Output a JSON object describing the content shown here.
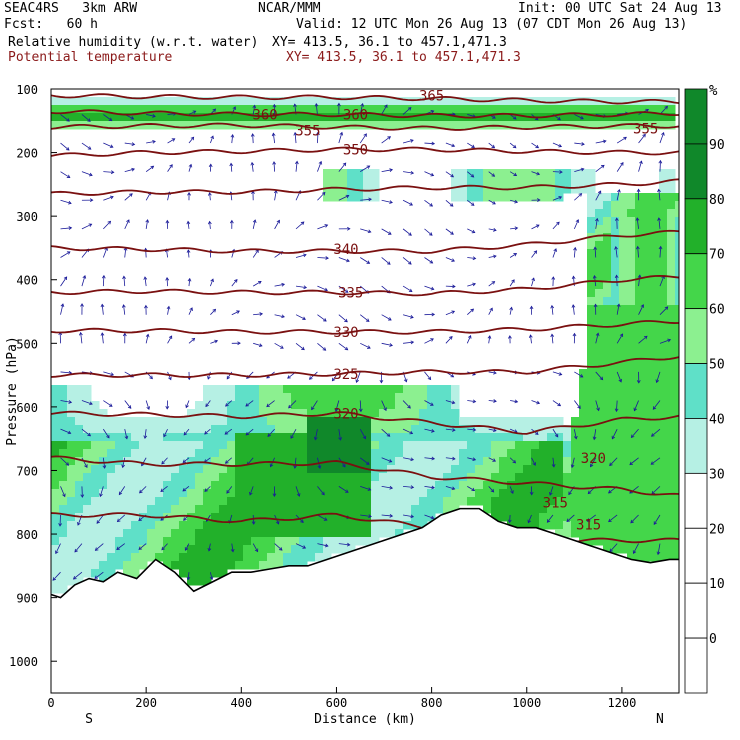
{
  "header": {
    "model": "SEAC4RS   3km ARW",
    "org": "NCAR/MMM",
    "init": "Init: 00 UTC Sat 24 Aug 13",
    "fcst": "Fcst:   60 h",
    "valid": "Valid: 12 UTC Mon 26 Aug 13 (07 CDT Mon 26 Aug 13)",
    "field1": "Relative humidity (w.r.t. water)",
    "xy1": "XY= 413.5, 36.1 to 457.1,471.3",
    "field2": "Potential temperature",
    "xy2": "XY= 413.5, 36.1 to 457.1,471.3"
  },
  "colors": {
    "rh": [
      "#ffffff",
      "#ffffff",
      "#ffffff",
      "#ffffff",
      "#b6f0e4",
      "#5fe0c8",
      "#8cf090",
      "#44d64a",
      "#22b02a",
      "#10882a"
    ],
    "theta": "#7a1010",
    "wind": "#1a1a99",
    "terrain": "#ffffff"
  },
  "chart_data": {
    "type": "heatmap",
    "title": "Relative humidity (w.r.t. water)",
    "xlabel": "Distance (km)",
    "ylabel": "Pressure (hPa)",
    "xlim": [
      0,
      1320
    ],
    "ylim": [
      1050,
      100
    ],
    "xticks": [
      0,
      200,
      400,
      600,
      800,
      1000,
      1200
    ],
    "yticks": [
      100,
      200,
      300,
      400,
      500,
      600,
      700,
      800,
      900,
      1000
    ],
    "x_end_labels": {
      "left": "S",
      "right": "N"
    },
    "colorbar": {
      "unit": "%",
      "levels": [
        0,
        10,
        20,
        30,
        40,
        50,
        60,
        70,
        80,
        90
      ]
    },
    "terrain_pressure": {
      "x": [
        0,
        20,
        50,
        80,
        110,
        140,
        180,
        220,
        260,
        300,
        340,
        380,
        420,
        460,
        500,
        540,
        580,
        620,
        660,
        700,
        740,
        780,
        820,
        860,
        900,
        940,
        980,
        1020,
        1060,
        1100,
        1140,
        1180,
        1220,
        1260,
        1300,
        1320
      ],
      "p": [
        895,
        900,
        880,
        870,
        875,
        860,
        870,
        840,
        860,
        890,
        875,
        860,
        860,
        855,
        850,
        850,
        840,
        830,
        820,
        810,
        800,
        790,
        770,
        760,
        760,
        780,
        790,
        790,
        800,
        810,
        820,
        830,
        840,
        845,
        840,
        840
      ]
    },
    "theta_contours": [
      {
        "label": "365",
        "x": [
          0,
          200,
          400,
          600,
          800,
          1000,
          1200,
          1320
        ],
        "p": [
          110,
          112,
          113,
          113,
          115,
          118,
          120,
          120
        ]
      },
      {
        "label": "360",
        "x": [
          0,
          200,
          400,
          600,
          800,
          1000,
          1200,
          1320
        ],
        "p": [
          135,
          138,
          140,
          140,
          142,
          142,
          140,
          138
        ]
      },
      {
        "label": "355",
        "x": [
          0,
          200,
          400,
          600,
          800,
          1000,
          1200,
          1320
        ],
        "p": [
          160,
          158,
          157,
          160,
          162,
          160,
          158,
          158
        ]
      },
      {
        "label": "350",
        "x": [
          0,
          200,
          400,
          600,
          800,
          1000,
          1200,
          1320
        ],
        "p": [
          205,
          200,
          198,
          195,
          195,
          198,
          200,
          200
        ]
      },
      {
        "label": "",
        "x": [
          0,
          200,
          400,
          600,
          800,
          1000,
          1200,
          1320
        ],
        "p": [
          265,
          262,
          262,
          258,
          255,
          255,
          250,
          245
        ]
      },
      {
        "label": "340",
        "x": [
          0,
          200,
          400,
          600,
          800,
          1000,
          1200,
          1320
        ],
        "p": [
          350,
          352,
          355,
          355,
          355,
          345,
          330,
          325
        ]
      },
      {
        "label": "335",
        "x": [
          0,
          200,
          400,
          600,
          800,
          1000,
          1200,
          1320
        ],
        "p": [
          420,
          418,
          420,
          420,
          422,
          415,
          400,
          395
        ]
      },
      {
        "label": "330",
        "x": [
          0,
          200,
          400,
          600,
          800,
          1000,
          1200,
          1320
        ],
        "p": [
          480,
          480,
          482,
          482,
          482,
          478,
          470,
          465
        ]
      },
      {
        "label": "325",
        "x": [
          0,
          200,
          400,
          600,
          800,
          1000,
          1200,
          1320
        ],
        "p": [
          550,
          550,
          550,
          548,
          545,
          545,
          530,
          520
        ]
      },
      {
        "label": "320",
        "x": [
          0,
          200,
          400,
          600,
          800,
          1000,
          1200,
          1320
        ],
        "p": [
          610,
          612,
          615,
          610,
          625,
          640,
          620,
          615
        ]
      },
      {
        "label": "",
        "x": [
          0,
          200,
          400,
          600,
          800,
          1000,
          1200,
          1320
        ],
        "p": [
          680,
          690,
          690,
          688,
          710,
          720,
          730,
          740
        ]
      },
      {
        "label": "",
        "x": [
          0,
          200,
          400,
          600,
          800,
          1000,
          1200,
          1320
        ],
        "p": [
          770,
          770,
          780,
          770,
          790,
          810,
          810,
          810
        ]
      }
    ],
    "contour_labels": [
      {
        "text": "365",
        "x": 800,
        "p": 110
      },
      {
        "text": "360",
        "x": 450,
        "p": 140
      },
      {
        "text": "360",
        "x": 640,
        "p": 140
      },
      {
        "text": "355",
        "x": 540,
        "p": 165
      },
      {
        "text": "355",
        "x": 1250,
        "p": 162
      },
      {
        "text": "350",
        "x": 640,
        "p": 195
      },
      {
        "text": "340",
        "x": 620,
        "p": 352
      },
      {
        "text": "335",
        "x": 630,
        "p": 420
      },
      {
        "text": "330",
        "x": 620,
        "p": 482
      },
      {
        "text": "325",
        "x": 620,
        "p": 548
      },
      {
        "text": "320",
        "x": 620,
        "p": 610
      },
      {
        "text": "320",
        "x": 1140,
        "p": 680
      },
      {
        "text": "315",
        "x": 1060,
        "p": 750
      },
      {
        "text": "315",
        "x": 1130,
        "p": 785
      }
    ]
  }
}
